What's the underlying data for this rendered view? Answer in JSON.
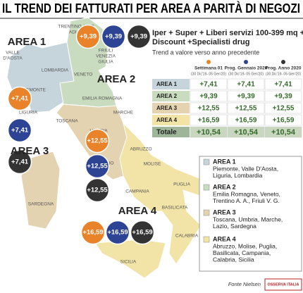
{
  "title": "IL TREND DEI FATTURATI PER AREA A PARITÀ DI NEGOZI",
  "subtitle": [
    "Iper + Super + Liberi servizi 100-399 mq +",
    "Discount +Specialisti drug"
  ],
  "note": "Trend a valore verso anno precedente",
  "table": {
    "columns": [
      {
        "name": "Settimana 01",
        "period": "(30 Dic'19- 05 Gen'20)",
        "color": "#e8832a"
      },
      {
        "name": "Prog. Gennaio 2020",
        "period": "(30 Dic'19- 05 Gen'20)",
        "color": "#2d4393"
      },
      {
        "name": "Prog. Anno 2020",
        "period": "(30 Dic'19- 05 Gen'20)",
        "color": "#333333"
      }
    ],
    "rows": [
      [
        "AREA 1",
        "+7,41",
        "+7,41",
        "+7,41"
      ],
      [
        "AREA 2",
        "+9,39",
        "+9,39",
        "+9,39"
      ],
      [
        "AREA 3",
        "+12,55",
        "+12,55",
        "+12,55"
      ],
      [
        "AREA 4",
        "+16,59",
        "+16,59",
        "+16,59"
      ]
    ],
    "total": [
      "Totale",
      "+10,54",
      "+10,54",
      "+10,54"
    ]
  },
  "map": {
    "areas": [
      {
        "label": "AREA 1",
        "color": "#c6d5dc",
        "bubbles": [
          "+7,41",
          "+7,41",
          "+7,41"
        ]
      },
      {
        "label": "AREA 2",
        "color": "#c9dcbf",
        "bubbles": [
          "+9,39",
          "+9,39",
          "+9,39"
        ]
      },
      {
        "label": "AREA 3",
        "color": "#e4d3b0",
        "bubbles": [
          "+12,55",
          "+12,55",
          "+12,55"
        ]
      },
      {
        "label": "AREA 4",
        "color": "#f2e3a6",
        "bubbles": [
          "+16,59",
          "+16,59",
          "+16,59"
        ]
      }
    ],
    "regions": [
      [
        "TRENTINO ALTO",
        "ADIGE"
      ],
      [
        "VALLE",
        "D'AOSTA"
      ],
      [
        "LOMBARDIA"
      ],
      [
        "PIEMONTE"
      ],
      [
        "LIGURIA"
      ],
      [
        "VENETO"
      ],
      [
        "FRIULI",
        "VENEZIA",
        "GIULIA"
      ],
      [
        "EMILIA ROMAGNA"
      ],
      [
        "TOSCANA"
      ],
      [
        "MARCHE"
      ],
      [
        "UMBRIA"
      ],
      [
        "LAZIO"
      ],
      [
        "ABRUZZO"
      ],
      [
        "MOLISE"
      ],
      [
        "PUGLIA"
      ],
      [
        "CAMPANIA"
      ],
      [
        "BASILICATA"
      ],
      [
        "CALABRIA"
      ],
      [
        "SARDEGNA"
      ],
      [
        "SICILIA"
      ]
    ]
  },
  "legend": [
    {
      "title": "AREA 1",
      "text": [
        "Piemonte, Valle D'Aosta,",
        "Liguria, Lombardia"
      ]
    },
    {
      "title": "AREA 2",
      "text": [
        "Emilia Romagna, Veneto,",
        "Trentino A. A., Friuli V. G."
      ]
    },
    {
      "title": "AREA 3",
      "text": [
        "Toscana, Umbria, Marche,",
        "Lazio, Sardegna"
      ]
    },
    {
      "title": "AREA 4",
      "text": [
        "Abruzzo, Molise, Puglia,",
        "Basilicata, Campania,",
        "Calabria, Sicilia"
      ]
    }
  ],
  "source": "Fonte Nielsen",
  "logo": "OSSERVA ITALIA"
}
